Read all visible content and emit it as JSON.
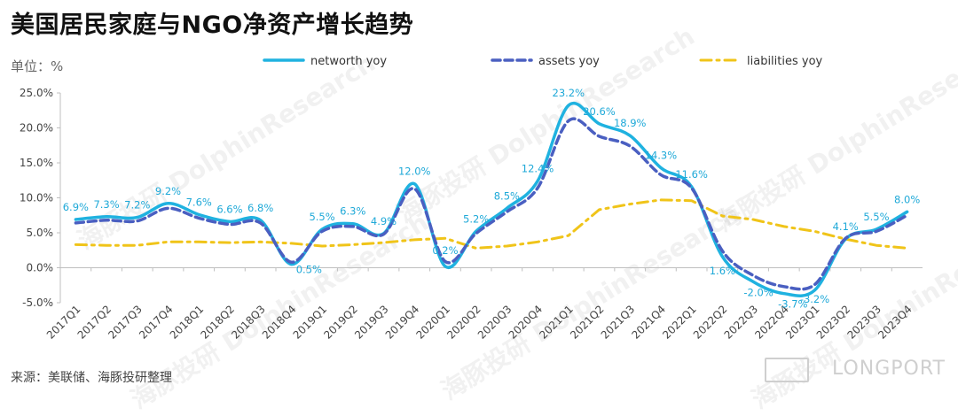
{
  "title": "美国居民家庭与NGO净资产增长趋势",
  "unit_label": "单位：%",
  "source": "来源：美联储、海豚投研整理",
  "brand": "LONGPORT",
  "watermarks": [
    "海豚投研",
    "DolphinResearch"
  ],
  "colors": {
    "networth": "#1fb2e0",
    "assets": "#4a5fc1",
    "liabilities": "#f0c419",
    "labels": "#1fa9d8"
  },
  "chart_data": {
    "type": "line",
    "title": "美国居民家庭与NGO净资产增长趋势",
    "ylabel": "单位：%",
    "ylim": [
      -5,
      25
    ],
    "yticks": [
      25,
      20,
      15,
      10,
      5,
      0,
      -5
    ],
    "ytick_labels": [
      "25.0%",
      "20.0%",
      "15.0%",
      "10.0%",
      "5.0%",
      "0.0%",
      "-5.0%"
    ],
    "grid": false,
    "legend_position": "top",
    "categories": [
      "2017Q1",
      "2017Q2",
      "2017Q3",
      "2017Q4",
      "2018Q1",
      "2018Q2",
      "2018Q3",
      "2018Q4",
      "2019Q1",
      "2019Q2",
      "2019Q3",
      "2019Q4",
      "2020Q1",
      "2020Q2",
      "2020Q3",
      "2020Q4",
      "2021Q1",
      "2021Q2",
      "2021Q3",
      "2021Q4",
      "2022Q1",
      "2022Q2",
      "2022Q3",
      "2022Q4",
      "2023Q1",
      "2023Q2",
      "2023Q3",
      "2023Q4"
    ],
    "series": [
      {
        "name": "networth yoy",
        "style": "solid",
        "values": [
          6.9,
          7.3,
          7.2,
          9.2,
          7.6,
          6.6,
          6.8,
          0.5,
          5.5,
          6.3,
          4.9,
          12.0,
          0.2,
          5.2,
          8.5,
          12.4,
          23.2,
          20.6,
          18.9,
          14.3,
          11.6,
          1.6,
          -2.0,
          -3.7,
          -3.2,
          4.1,
          5.5,
          8.0
        ],
        "data_labels": [
          "6.9%",
          "7.3%",
          "7.2%",
          "9.2%",
          "7.6%",
          "6.6%",
          "6.8%",
          "0.5%",
          "5.5%",
          "6.3%",
          "4.9%",
          "12.0%",
          "0.2%",
          "5.2%",
          "8.5%",
          "12.4%",
          "23.2%",
          "20.6%",
          "18.9%",
          "14.3%",
          "11.6%",
          "1.6%",
          "-2.0%",
          "-3.7%",
          "-3.2%",
          "4.1%",
          "5.5%",
          "8.0%"
        ]
      },
      {
        "name": "assets yoy",
        "style": "dashed",
        "values": [
          6.4,
          6.8,
          6.7,
          8.5,
          7.1,
          6.2,
          6.4,
          0.8,
          5.2,
          5.9,
          4.8,
          11.3,
          0.9,
          4.9,
          8.0,
          11.4,
          21.0,
          18.8,
          17.4,
          13.3,
          11.4,
          2.4,
          -1.1,
          -2.7,
          -2.4,
          4.2,
          5.2,
          7.5
        ]
      },
      {
        "name": "liabilities yoy",
        "style": "dashdot",
        "values": [
          3.3,
          3.2,
          3.2,
          3.7,
          3.7,
          3.6,
          3.7,
          3.5,
          3.1,
          3.3,
          3.6,
          4.0,
          4.2,
          2.8,
          3.1,
          3.7,
          4.6,
          8.3,
          9.1,
          9.7,
          9.6,
          7.4,
          6.9,
          5.9,
          5.2,
          4.1,
          3.2,
          2.8
        ]
      }
    ]
  }
}
